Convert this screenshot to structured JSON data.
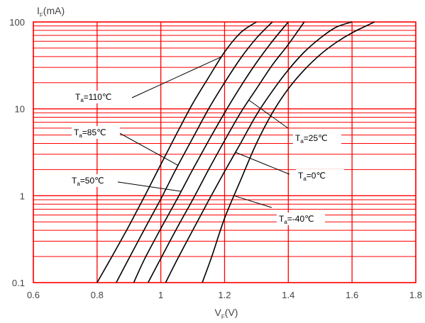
{
  "chart_data": {
    "type": "line",
    "title": "",
    "xlabel": "V",
    "xlabel_sub": "F",
    "xlabel_unit": "(V)",
    "ylabel": "I",
    "ylabel_sub": "F",
    "ylabel_unit": "(mA)",
    "x_scale": "linear",
    "y_scale": "log",
    "xlim": [
      0.6,
      1.8
    ],
    "ylim": [
      0.1,
      100
    ],
    "x_ticks": [
      0.6,
      0.8,
      1.0,
      1.2,
      1.4,
      1.6,
      1.8
    ],
    "x_tick_labels": [
      "0.6",
      "0.8",
      "1",
      "1.2",
      "1.4",
      "1.6",
      "1.8"
    ],
    "y_ticks": [
      0.1,
      1,
      10,
      100
    ],
    "y_tick_labels": [
      "0.1",
      "1",
      "10",
      "100"
    ],
    "grid": true,
    "grid_color": "#ff0000",
    "line_color": "#000000",
    "series": [
      {
        "name": "110℃",
        "x": [
          0.8,
          0.85,
          0.9,
          0.95,
          1.0,
          1.05,
          1.1,
          1.15,
          1.2,
          1.25,
          1.3
        ],
        "y": [
          0.1,
          0.21,
          0.45,
          1.0,
          2.3,
          5.2,
          11.5,
          23,
          45,
          75,
          100
        ]
      },
      {
        "name": "85℃",
        "x": [
          0.86,
          0.9,
          0.95,
          1.0,
          1.05,
          1.1,
          1.15,
          1.2,
          1.25,
          1.3,
          1.35
        ],
        "y": [
          0.1,
          0.19,
          0.42,
          0.92,
          2.1,
          4.6,
          10,
          20,
          38,
          65,
          100
        ]
      },
      {
        "name": "50℃",
        "x": [
          0.915,
          0.95,
          1.0,
          1.05,
          1.1,
          1.15,
          1.2,
          1.25,
          1.3,
          1.35,
          1.4
        ],
        "y": [
          0.1,
          0.19,
          0.42,
          0.9,
          2.0,
          4.3,
          9.0,
          18,
          34,
          60,
          100
        ]
      },
      {
        "name": "25℃",
        "x": [
          0.96,
          1.0,
          1.05,
          1.1,
          1.15,
          1.2,
          1.25,
          1.3,
          1.35,
          1.4,
          1.45
        ],
        "y": [
          0.1,
          0.19,
          0.42,
          0.9,
          2.0,
          4.3,
          9.0,
          17,
          32,
          55,
          100
        ]
      },
      {
        "name": "0℃",
        "x": [
          1.015,
          1.05,
          1.1,
          1.15,
          1.2,
          1.25,
          1.3,
          1.35,
          1.4,
          1.45,
          1.5,
          1.55,
          1.6
        ],
        "y": [
          0.1,
          0.18,
          0.4,
          0.88,
          1.9,
          4.0,
          8.5,
          16,
          28,
          45,
          65,
          87,
          100
        ]
      },
      {
        "name": "-40℃",
        "x": [
          1.13,
          1.16,
          1.2,
          1.25,
          1.3,
          1.35,
          1.4,
          1.45,
          1.5,
          1.55,
          1.6,
          1.65,
          1.67
        ],
        "y": [
          0.1,
          0.2,
          0.55,
          1.5,
          4.0,
          9.0,
          17,
          28,
          42,
          58,
          75,
          92,
          100
        ]
      }
    ],
    "annotations": [
      {
        "prefix": "T",
        "sub": "a",
        "text": "=110℃",
        "series": "110℃",
        "point": [
          1.04,
          1.6
        ]
      },
      {
        "prefix": "T",
        "sub": "a",
        "text": "=85℃",
        "series": "85℃",
        "point": [
          1.04,
          0.35
        ]
      },
      {
        "prefix": "T",
        "sub": "a",
        "text": "=50℃",
        "series": "50℃",
        "point": [
          1.03,
          0.05
        ]
      },
      {
        "prefix": "T",
        "sub": "a",
        "text": "=25℃",
        "series": "25℃",
        "point": [
          1.22,
          1.1
        ]
      },
      {
        "prefix": "T",
        "sub": "a",
        "text": "=0℃",
        "series": "0℃",
        "point": [
          1.2,
          0.5
        ]
      },
      {
        "prefix": "T",
        "sub": "a",
        "text": "=-40℃",
        "series": "-40℃",
        "point": [
          1.2,
          0.0
        ]
      }
    ]
  }
}
